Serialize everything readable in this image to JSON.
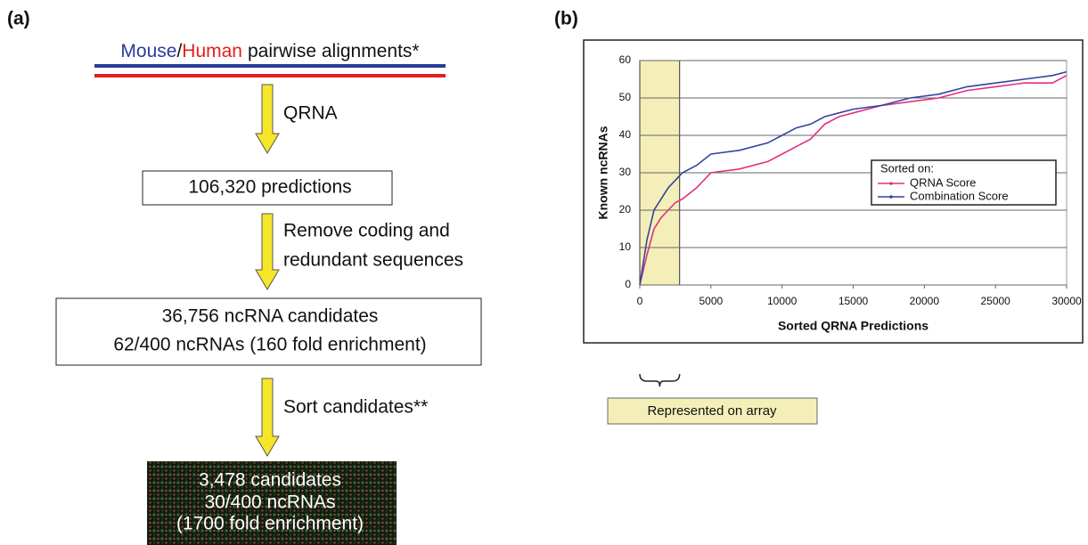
{
  "panel_a": {
    "label": "(a)",
    "source": {
      "species_1": "Mouse",
      "separator": "/",
      "species_2": "Human",
      "text": "pairwise alignments*"
    },
    "arrow_labels": [
      [
        "QRNA"
      ],
      [
        "Remove coding and",
        "redundant sequences"
      ],
      [
        "Sort candidates**"
      ]
    ],
    "boxes": [
      [
        "106,320 predictions"
      ],
      [
        "36,756 ncRNA candidates",
        "62/400 ncRNAs (160 fold enrichment)"
      ],
      [
        "3,478 candidates",
        "30/400 ncRNAs",
        "(1700 fold enrichment)"
      ]
    ]
  },
  "panel_b": {
    "label": "(b)"
  },
  "chart_data": {
    "type": "line",
    "xlabel": "Sorted QRNA Predictions",
    "ylabel": "Known ncRNAs",
    "x": [
      0,
      500,
      1000,
      1500,
      2000,
      2500,
      3000,
      4000,
      5000,
      7000,
      9000,
      10000,
      11000,
      12000,
      13000,
      14000,
      15000,
      17000,
      19000,
      21000,
      23000,
      25000,
      27000,
      29000,
      30000
    ],
    "series": [
      {
        "name": "QRNA Score",
        "color": "#e0307f",
        "values": [
          0,
          8,
          15,
          18,
          20,
          22,
          23,
          26,
          30,
          31,
          33,
          35,
          37,
          39,
          43,
          45,
          46,
          48,
          49,
          50,
          52,
          53,
          54,
          54,
          56
        ]
      },
      {
        "name": "Combination Score",
        "color": "#3344a0",
        "values": [
          0,
          12,
          20,
          23,
          26,
          28,
          30,
          32,
          35,
          36,
          38,
          40,
          42,
          43,
          45,
          46,
          47,
          48,
          50,
          51,
          53,
          54,
          55,
          56,
          57
        ]
      }
    ],
    "xlim": [
      0,
      30000
    ],
    "ylim": [
      0,
      60
    ],
    "xticks": [
      0,
      5000,
      10000,
      15000,
      20000,
      25000,
      30000
    ],
    "yticks": [
      0,
      10,
      20,
      30,
      40,
      50,
      60
    ],
    "grid": true,
    "legend_title": "Sorted on:",
    "highlight": {
      "xlim": [
        0,
        2800
      ],
      "label": "Represented on array",
      "color": "#f4efb8"
    }
  }
}
